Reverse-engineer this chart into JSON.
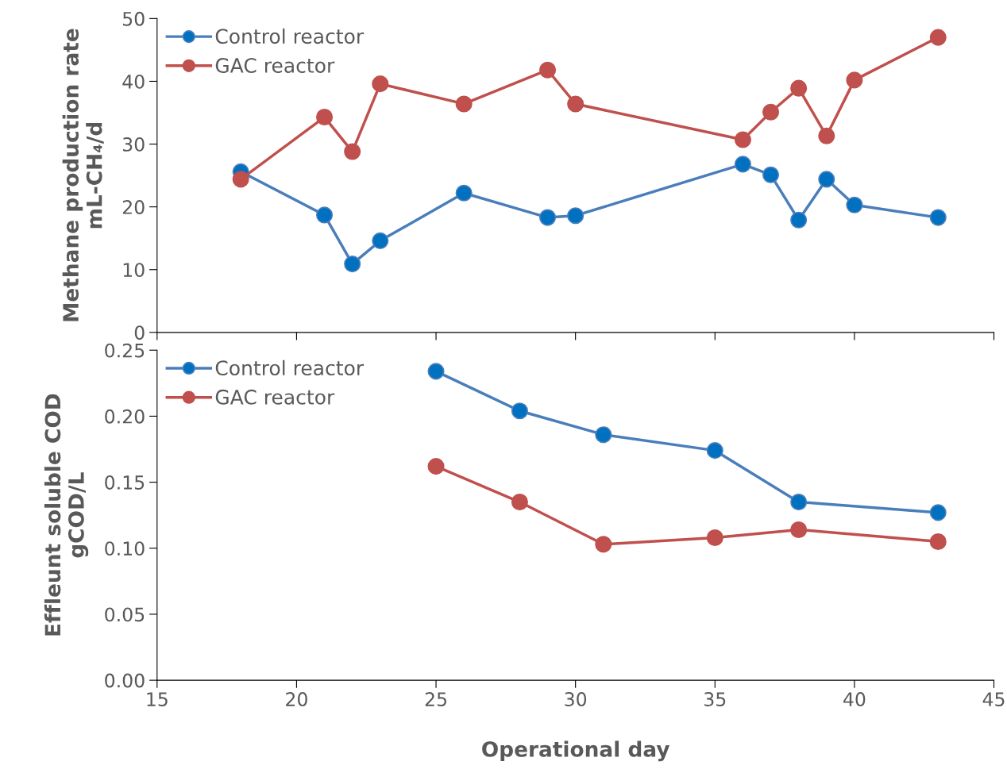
{
  "chart_data": [
    {
      "type": "line",
      "ylabel": "Methane production rate\nmL-CH₄/d",
      "xlim": [
        15,
        45
      ],
      "xticks": [
        15,
        20,
        25,
        30,
        35,
        40,
        45
      ],
      "ylim": [
        0,
        50
      ],
      "yticks": [
        0,
        10,
        20,
        30,
        40,
        50
      ],
      "tick_labels": "y",
      "grid": false,
      "legend": "top left",
      "marker": "circle",
      "line_style": "solid",
      "series": [
        {
          "name": "Control reactor",
          "color": "#4a7ebb",
          "x": [
            18,
            21,
            22,
            23,
            26,
            29,
            30,
            36,
            37,
            38,
            39,
            40,
            43
          ],
          "values": [
            25.6,
            18.7,
            10.9,
            14.6,
            22.2,
            18.3,
            18.6,
            26.8,
            25.1,
            17.9,
            24.4,
            20.3,
            18.3
          ]
        },
        {
          "name": "GAC reactor",
          "color": "#c0504d",
          "x": [
            18,
            21,
            22,
            23,
            26,
            29,
            30,
            36,
            37,
            38,
            39,
            40,
            43
          ],
          "values": [
            24.4,
            34.3,
            28.8,
            39.6,
            36.4,
            41.8,
            36.4,
            30.7,
            35.1,
            38.9,
            31.3,
            40.2,
            47.0
          ]
        }
      ]
    },
    {
      "type": "line",
      "xlabel": "Operational day",
      "ylabel": "Effleunt soluble COD\ngCOD/L",
      "xlim": [
        15,
        45
      ],
      "xticks": [
        15,
        20,
        25,
        30,
        35,
        40,
        45
      ],
      "ylim": [
        0,
        0.25
      ],
      "yticks": [
        {
          "value": 0,
          "label": "0.00"
        },
        {
          "value": 0.05,
          "label": "0.05"
        },
        {
          "value": 0.1,
          "label": "0.10"
        },
        {
          "value": 0.15,
          "label": "0.15"
        },
        {
          "value": 0.2,
          "label": "0.20"
        },
        {
          "value": 0.25,
          "label": "0.25"
        }
      ],
      "grid": false,
      "legend": "top left",
      "marker": "circle",
      "line_style": "solid",
      "series": [
        {
          "name": "Control reactor",
          "color": "#4a7ebb",
          "x": [
            25,
            28,
            31,
            35,
            38,
            43
          ],
          "values": [
            0.234,
            0.204,
            0.186,
            0.174,
            0.135,
            0.127
          ]
        },
        {
          "name": "GAC reactor",
          "color": "#c0504d",
          "x": [
            25,
            28,
            31,
            35,
            38,
            43
          ],
          "values": [
            0.162,
            0.135,
            0.103,
            0.108,
            0.114,
            0.105
          ]
        }
      ]
    }
  ]
}
